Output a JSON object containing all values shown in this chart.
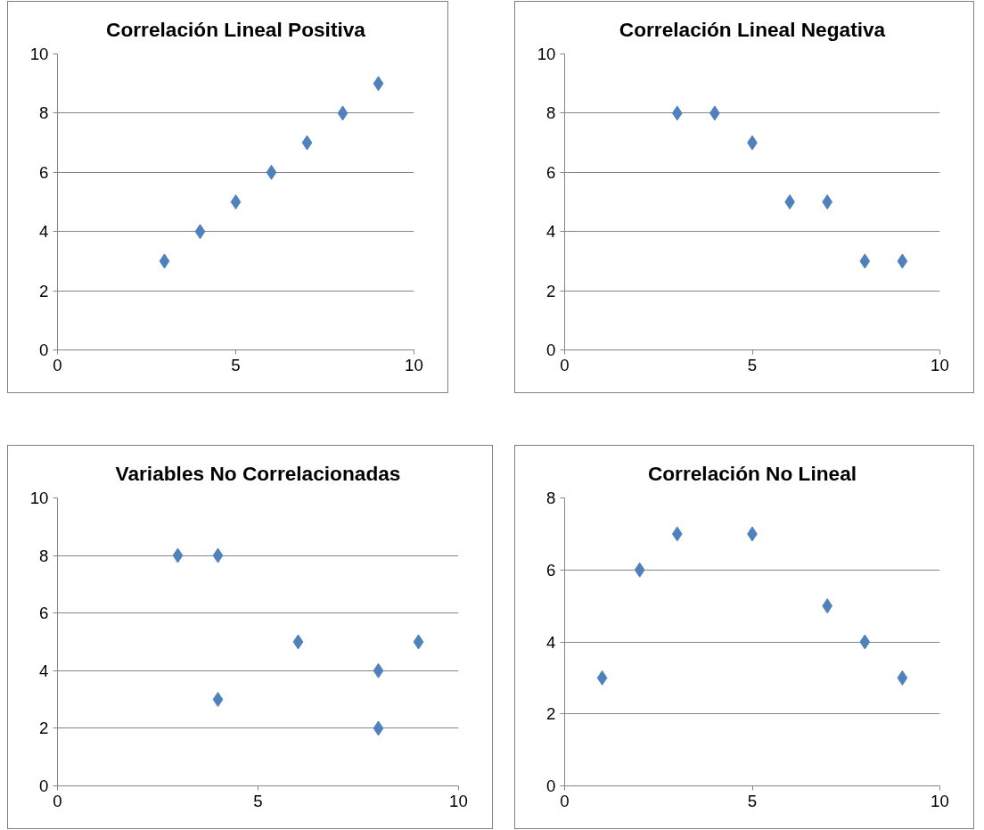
{
  "chart_data": [
    {
      "type": "scatter",
      "title": "Correlación Lineal Positiva",
      "x": [
        3,
        4,
        5,
        6,
        7,
        8,
        9
      ],
      "series": [
        {
          "color": "#4f81bd",
          "values": [
            3,
            4,
            5,
            6,
            7,
            8,
            9
          ]
        }
      ],
      "xlim": [
        0,
        10
      ],
      "xticks": [
        0,
        5,
        10
      ],
      "ylim": [
        0,
        10
      ],
      "yticks": [
        0,
        2,
        4,
        6,
        8,
        10
      ],
      "grid": "y",
      "marker": "diamond"
    },
    {
      "type": "scatter",
      "title": "Correlación Lineal Negativa",
      "x": [
        3,
        4,
        5,
        6,
        7,
        8,
        9
      ],
      "series": [
        {
          "color": "#4f81bd",
          "values": [
            8,
            8,
            7,
            5,
            5,
            3,
            3
          ]
        }
      ],
      "xlim": [
        0,
        10
      ],
      "xticks": [
        0,
        5,
        10
      ],
      "ylim": [
        0,
        10
      ],
      "yticks": [
        0,
        2,
        4,
        6,
        8,
        10
      ],
      "grid": "y",
      "marker": "diamond"
    },
    {
      "type": "scatter",
      "title": "Variables No Correlacionadas",
      "x": [
        3,
        4,
        4,
        6,
        8,
        8,
        9
      ],
      "series": [
        {
          "color": "#4f81bd",
          "values": [
            8,
            8,
            3,
            5,
            4,
            2,
            5
          ]
        }
      ],
      "xlim": [
        0,
        10
      ],
      "xticks": [
        0,
        5,
        10
      ],
      "ylim": [
        0,
        10
      ],
      "yticks": [
        0,
        2,
        4,
        6,
        8,
        10
      ],
      "grid": "y",
      "marker": "diamond"
    },
    {
      "type": "scatter",
      "title": "Correlación No Lineal",
      "x": [
        1,
        2,
        3,
        5,
        7,
        8,
        9
      ],
      "series": [
        {
          "color": "#4f81bd",
          "values": [
            3,
            6,
            7,
            7,
            5,
            4,
            3
          ]
        }
      ],
      "xlim": [
        0,
        10
      ],
      "xticks": [
        0,
        5,
        10
      ],
      "ylim": [
        0,
        8
      ],
      "yticks": [
        0,
        2,
        4,
        6,
        8
      ],
      "grid": "y",
      "marker": "diamond"
    }
  ]
}
